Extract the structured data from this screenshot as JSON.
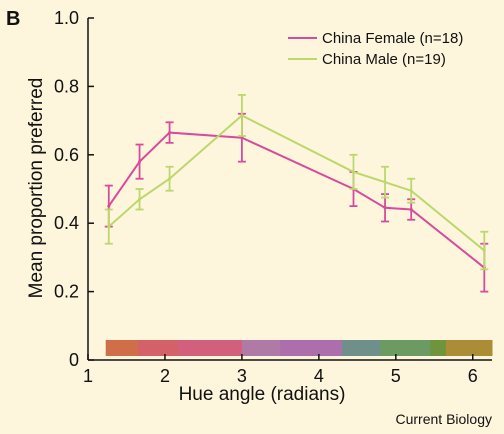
{
  "panel_label": "B",
  "credit": "Current Biology",
  "chart_data": {
    "type": "line",
    "xlabel": "Hue angle (radians)",
    "ylabel": "Mean proportion preferred",
    "xlim": [
      1,
      6.25
    ],
    "ylim": [
      0,
      1.0
    ],
    "x_ticks": [
      1,
      2,
      3,
      4,
      5,
      6
    ],
    "y_ticks": [
      0,
      0.2,
      0.4,
      0.6,
      0.8,
      1.0
    ],
    "x_tick_labels": [
      "1",
      "2",
      "3",
      "4",
      "5",
      "6"
    ],
    "y_tick_labels": [
      "0",
      "0.2",
      "0.4",
      "0.6",
      "0.8",
      "1.0"
    ],
    "legend_position": "top-right",
    "series": [
      {
        "name": "China Female (n=18)",
        "color": "#d64b9b",
        "x": [
          1.27,
          1.67,
          2.06,
          3.0,
          4.45,
          4.86,
          5.2,
          6.15
        ],
        "y": [
          0.45,
          0.58,
          0.665,
          0.65,
          0.5,
          0.445,
          0.44,
          0.27
        ],
        "err": [
          0.06,
          0.05,
          0.03,
          0.07,
          0.05,
          0.04,
          0.03,
          0.07
        ]
      },
      {
        "name": "China Male (n=19)",
        "color": "#bcd76c",
        "x": [
          1.27,
          1.67,
          2.06,
          3.0,
          4.45,
          4.86,
          5.2,
          6.15
        ],
        "y": [
          0.39,
          0.47,
          0.53,
          0.715,
          0.55,
          0.52,
          0.495,
          0.32
        ],
        "err": [
          0.05,
          0.03,
          0.035,
          0.06,
          0.05,
          0.045,
          0.035,
          0.055
        ]
      }
    ],
    "hue_bar": {
      "x_range": [
        1.23,
        6.25
      ],
      "colors": [
        "#cf6e48",
        "#d4606a",
        "#d2607c",
        "#b07aa6",
        "#ad6fab",
        "#6e8f8a",
        "#6b9a62",
        "#6f943c",
        "#ab8d35"
      ],
      "boundaries": [
        1.23,
        1.65,
        2.17,
        3.0,
        3.5,
        4.3,
        4.8,
        5.45,
        5.65,
        6.25
      ]
    }
  }
}
